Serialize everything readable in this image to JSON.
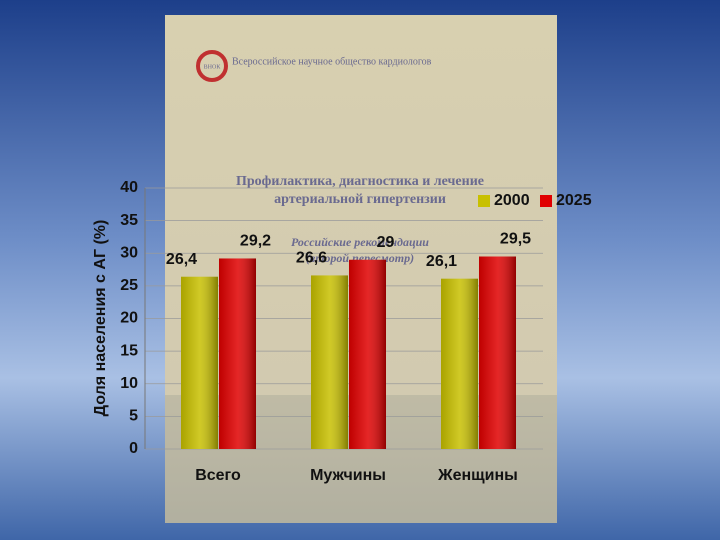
{
  "cover": {
    "society": "Всероссийское научное общество кардиологов",
    "logo": "ВНОК",
    "title_lines": [
      "Профилактика, диагностика и лечение",
      "артериальной гипертензии"
    ],
    "subtitle_lines": [
      "Российские рекомендации",
      "(второй пересмотр)"
    ]
  },
  "chart_data": {
    "type": "bar",
    "y_label": "Доля населения с АГ (%)",
    "categories": [
      "Всего",
      "Мужчины",
      "Женщины"
    ],
    "series": [
      {
        "name": "2000",
        "color": "#c8c000",
        "values": [
          26.4,
          26.6,
          26.1
        ],
        "value_labels": [
          "26,4",
          "26,6",
          "26,1"
        ]
      },
      {
        "name": "2025",
        "color": "#e00000",
        "values": [
          29.2,
          29,
          29.5
        ],
        "value_labels": [
          "29,2",
          "29",
          "29,5"
        ]
      }
    ],
    "ylim": [
      0,
      40
    ],
    "yticks": [
      0,
      5,
      10,
      15,
      20,
      25,
      30,
      35,
      40
    ],
    "grid": true,
    "legend": "top-right"
  }
}
